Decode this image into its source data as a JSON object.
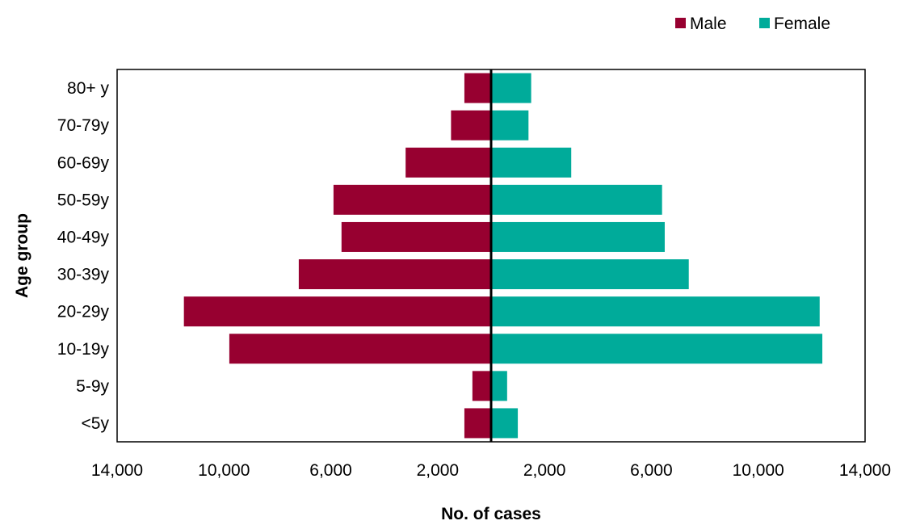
{
  "chart_data": {
    "type": "bar",
    "orientation": "horizontal",
    "subtype": "population-pyramid",
    "title": "",
    "xlabel": "No. of cases",
    "ylabel": "Age group",
    "categories": [
      "<5y",
      "5-9y",
      "10-19y",
      "20-29y",
      "30-39y",
      "40-49y",
      "50-59y",
      "60-69y",
      "70-79y",
      "80+ y"
    ],
    "series": [
      {
        "name": "Male",
        "color": "#970030",
        "side": "left",
        "values": [
          1000,
          700,
          9800,
          11500,
          7200,
          5600,
          5900,
          3200,
          1500,
          1000
        ]
      },
      {
        "name": "Female",
        "color": "#00ab9a",
        "side": "right",
        "values": [
          1000,
          600,
          12400,
          12300,
          7400,
          6500,
          6400,
          3000,
          1400,
          1500
        ]
      }
    ],
    "xlim": [
      -14000,
      14000
    ],
    "xticks": [
      -14000,
      -10000,
      -6000,
      -2000,
      2000,
      6000,
      10000,
      14000
    ],
    "xtick_labels": [
      "14,000",
      "10,000",
      "6,000",
      "2,000",
      "2,000",
      "6,000",
      "10,000",
      "14,000"
    ],
    "legend_position": "top-right",
    "grid": false,
    "center_line": true
  }
}
